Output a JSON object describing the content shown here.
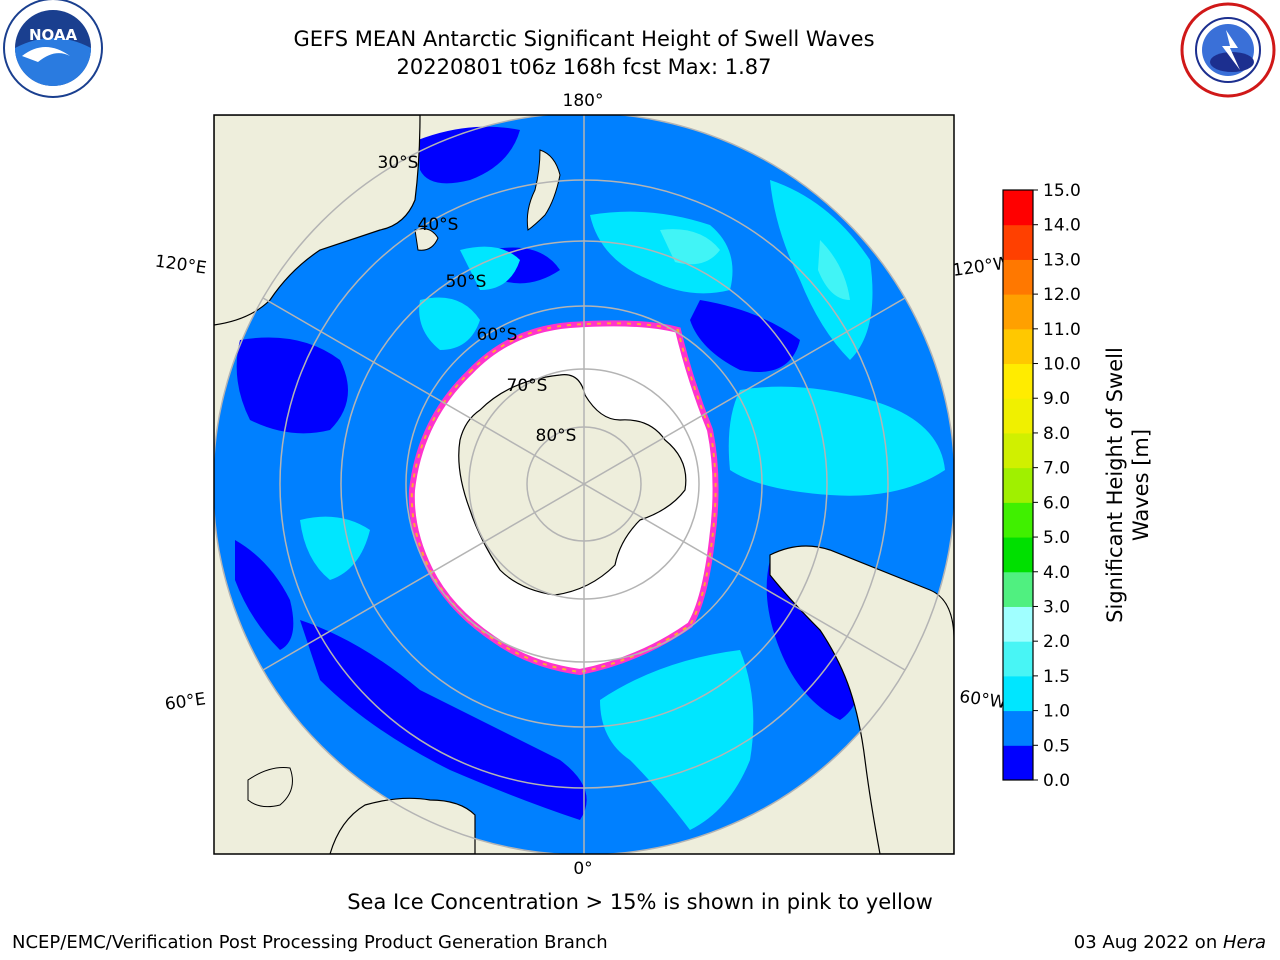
{
  "header": {
    "title_line1": "GEFS MEAN Antarctic Significant Height of Swell Waves",
    "title_line2": "20220801 t06z 168h fcst   Max: 1.87"
  },
  "logos": {
    "left": "noaa-logo",
    "right": "national-weather-service-logo"
  },
  "map": {
    "projection": "south-polar-stereographic",
    "meridian_labels": [
      "180°",
      "120°E",
      "120°W",
      "60°E",
      "60°W",
      "0°"
    ],
    "parallel_labels": [
      "30°S",
      "40°S",
      "50°S",
      "60°S",
      "70°S",
      "80°S"
    ],
    "colors": {
      "land": "#eeeedc",
      "sea_ice": "#ffffff",
      "ice_edge": [
        "#ff33cc",
        "#ffaa33",
        "#ffdd33"
      ],
      "gridline": "#b4b4b4"
    }
  },
  "colorbar": {
    "label": "Significant Height of Swell Waves [m]",
    "ticks": [
      "0.0",
      "0.5",
      "1.0",
      "1.5",
      "2.0",
      "3.0",
      "4.0",
      "5.0",
      "6.0",
      "7.0",
      "8.0",
      "9.0",
      "10.0",
      "11.0",
      "12.0",
      "13.0",
      "14.0",
      "15.0"
    ],
    "colors": [
      "#0000ff",
      "#0080ff",
      "#00e6ff",
      "#48f5f5",
      "#a0ffff",
      "#50f080",
      "#00e000",
      "#40f000",
      "#a0f000",
      "#d0f000",
      "#f0f000",
      "#ffec00",
      "#ffc800",
      "#ffa000",
      "#ff7800",
      "#ff4000",
      "#ff0000"
    ]
  },
  "footnote": "Sea Ice Concentration > 15% is shown in pink to yellow",
  "footer": {
    "credit": "NCEP/EMC/Verification Post Processing Product Generation Branch",
    "date_prefix": "03 Aug 2022 on ",
    "machine": "Hera"
  }
}
